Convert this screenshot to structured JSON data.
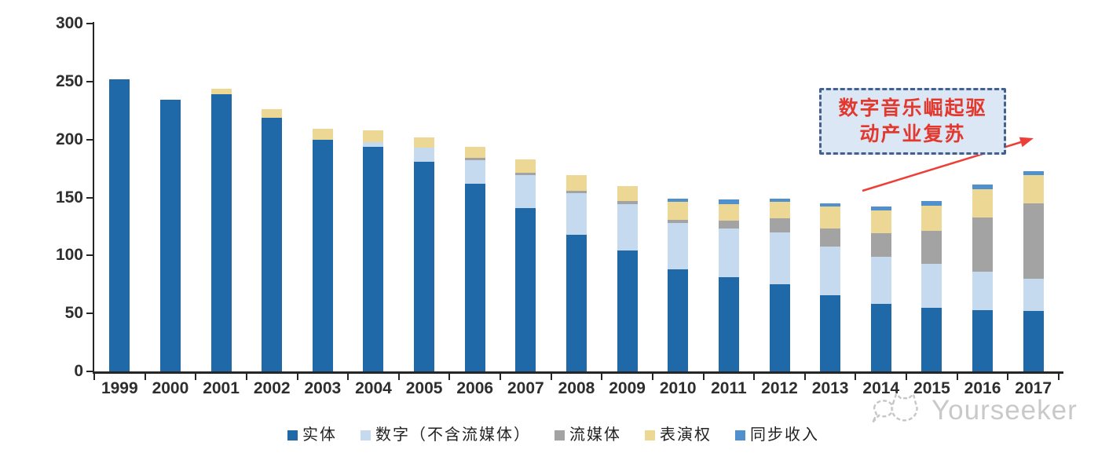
{
  "chart_data": {
    "type": "bar",
    "stacked": true,
    "title": "",
    "xlabel": "",
    "ylabel": "",
    "categories": [
      "1999",
      "2000",
      "2001",
      "2002",
      "2003",
      "2004",
      "2005",
      "2006",
      "2007",
      "2008",
      "2009",
      "2010",
      "2011",
      "2012",
      "2013",
      "2014",
      "2015",
      "2016",
      "2017"
    ],
    "series": [
      {
        "name": "实体",
        "color": "#2069a9",
        "values": [
          252,
          234,
          239,
          219,
          200,
          194,
          181,
          162,
          141,
          118,
          104,
          88,
          81,
          75,
          66,
          58,
          55,
          53,
          52
        ]
      },
      {
        "name": "数字（不含流媒体）",
        "color": "#c5daef",
        "values": [
          0,
          0,
          0,
          0,
          0,
          4,
          12,
          20,
          28,
          36,
          40,
          40,
          42,
          45,
          42,
          41,
          38,
          33,
          28
        ]
      },
      {
        "name": "流媒体",
        "color": "#a3a3a3",
        "values": [
          0,
          0,
          0,
          0,
          0,
          0,
          0,
          2,
          2,
          2,
          3,
          3,
          7,
          12,
          15,
          20,
          28,
          47,
          65
        ]
      },
      {
        "name": "表演权",
        "color": "#ecd795",
        "values": [
          0,
          0,
          5,
          7,
          9,
          10,
          9,
          10,
          12,
          13,
          13,
          15,
          14,
          14,
          19,
          20,
          22,
          24,
          24
        ]
      },
      {
        "name": "同步收入",
        "color": "#5090cc",
        "values": [
          0,
          0,
          0,
          0,
          0,
          0,
          0,
          0,
          0,
          0,
          0,
          3,
          4,
          3,
          3,
          3,
          4,
          4,
          4
        ]
      }
    ],
    "ylim": [
      0,
      300
    ],
    "yticks": [
      0,
      50,
      100,
      150,
      200,
      250,
      300
    ],
    "grid": false,
    "legend_position": "bottom"
  },
  "annotation": {
    "line1": "数字音乐崛起驱",
    "line2": "动产业复苏",
    "text_color": "#e2382e",
    "box_fill": "#dbe7f5",
    "box_border": "#44608f",
    "arrow_color": "#ed3f38"
  },
  "watermark": {
    "text": "Yourseeker"
  },
  "colors": {
    "axis": "#262626"
  }
}
